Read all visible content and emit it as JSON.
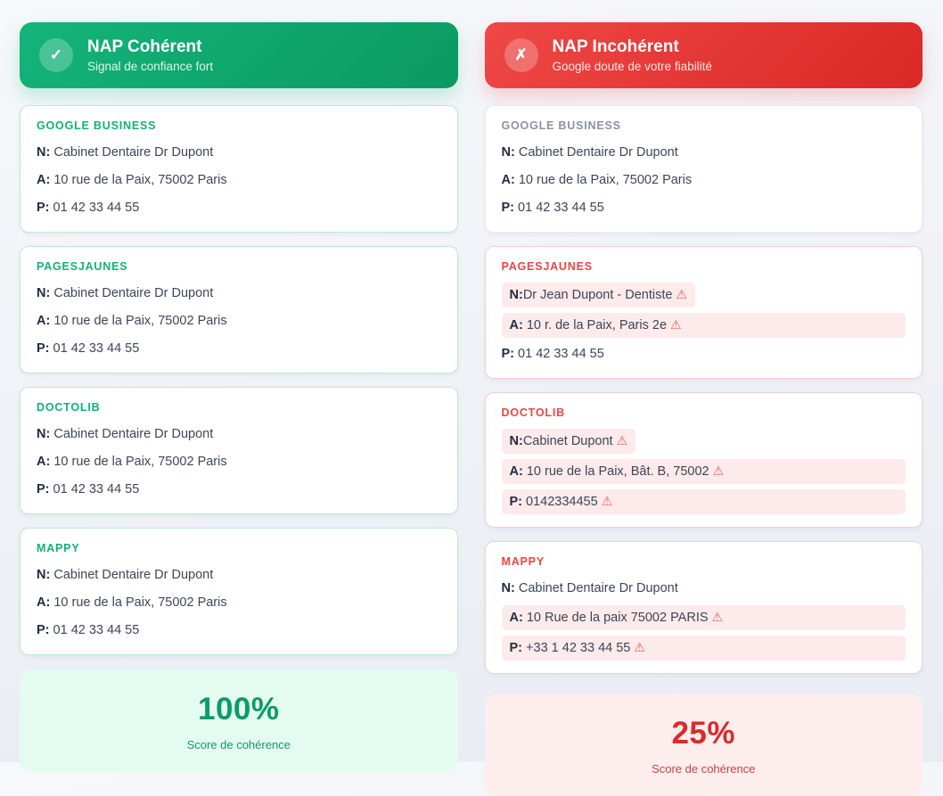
{
  "warning_icon": "⚠",
  "colors": {
    "green": "#10b981",
    "green_dark": "#059669",
    "red": "#ef4444",
    "red_dark": "#dc2626",
    "highlight_bg": "#fdeaea",
    "ok_border": "#b9ecd3",
    "bad_border": "#f8cdd0"
  },
  "columns": [
    {
      "id": "coherent",
      "theme": "green",
      "header": {
        "icon_glyph": "✓",
        "icon_name": "check-icon",
        "title": "NAP Cohérent",
        "subtitle": "Signal de confiance fort"
      },
      "cards": [
        {
          "theme": "ok",
          "source": "GOOGLE BUSINESS",
          "rows": [
            {
              "label": "N:",
              "value": "Cabinet Dentaire Dr Dupont",
              "highlight": "none",
              "warn": false
            },
            {
              "label": "A:",
              "value": "10 rue de la Paix, 75002 Paris",
              "highlight": "none",
              "warn": false
            },
            {
              "label": "P:",
              "value": "01 42 33 44 55",
              "highlight": "none",
              "warn": false
            }
          ]
        },
        {
          "theme": "ok",
          "source": "PAGESJAUNES",
          "rows": [
            {
              "label": "N:",
              "value": "Cabinet Dentaire Dr Dupont",
              "highlight": "none",
              "warn": false
            },
            {
              "label": "A:",
              "value": "10 rue de la Paix, 75002 Paris",
              "highlight": "none",
              "warn": false
            },
            {
              "label": "P:",
              "value": "01 42 33 44 55",
              "highlight": "none",
              "warn": false
            }
          ]
        },
        {
          "theme": "ok",
          "source": "DOCTOLIB",
          "rows": [
            {
              "label": "N:",
              "value": "Cabinet Dentaire Dr Dupont",
              "highlight": "none",
              "warn": false
            },
            {
              "label": "A:",
              "value": "10 rue de la Paix, 75002 Paris",
              "highlight": "none",
              "warn": false
            },
            {
              "label": "P:",
              "value": "01 42 33 44 55",
              "highlight": "none",
              "warn": false
            }
          ]
        },
        {
          "theme": "ok",
          "source": "MAPPY",
          "rows": [
            {
              "label": "N:",
              "value": "Cabinet Dentaire Dr Dupont",
              "highlight": "none",
              "warn": false
            },
            {
              "label": "A:",
              "value": "10 rue de la Paix, 75002 Paris",
              "highlight": "none",
              "warn": false
            },
            {
              "label": "P:",
              "value": "01 42 33 44 55",
              "highlight": "none",
              "warn": false
            }
          ]
        }
      ],
      "score": {
        "value": "100%",
        "label": "Score de cohérence"
      }
    },
    {
      "id": "incoherent",
      "theme": "red",
      "header": {
        "icon_glyph": "✗",
        "icon_name": "cross-icon",
        "title": "NAP Incohérent",
        "subtitle": "Google doute de votre fiabilité"
      },
      "cards": [
        {
          "theme": "neutral",
          "source": "GOOGLE BUSINESS",
          "rows": [
            {
              "label": "N:",
              "value": "Cabinet Dentaire Dr Dupont",
              "highlight": "none",
              "warn": false
            },
            {
              "label": "A:",
              "value": "10 rue de la Paix, 75002 Paris",
              "highlight": "none",
              "warn": false
            },
            {
              "label": "P:",
              "value": "01 42 33 44 55",
              "highlight": "none",
              "warn": false
            }
          ]
        },
        {
          "theme": "bad",
          "source": "PAGESJAUNES",
          "rows": [
            {
              "label": "N:",
              "value": "Dr Jean Dupont - Dentiste",
              "highlight": "fit",
              "warn": true
            },
            {
              "label": "A:",
              "value": "10 r. de la Paix, Paris 2e",
              "highlight": "full",
              "warn": true
            },
            {
              "label": "P:",
              "value": "01 42 33 44 55",
              "highlight": "none",
              "warn": false
            }
          ]
        },
        {
          "theme": "bad",
          "source": "DOCTOLIB",
          "rows": [
            {
              "label": "N:",
              "value": "Cabinet Dupont",
              "highlight": "fit",
              "warn": true
            },
            {
              "label": "A:",
              "value": "10 rue de la Paix, Bât. B, 75002",
              "highlight": "full",
              "warn": true
            },
            {
              "label": "P:",
              "value": "0142334455",
              "highlight": "full",
              "warn": true
            }
          ]
        },
        {
          "theme": "bad",
          "source": "MAPPY",
          "rows": [
            {
              "label": "N:",
              "value": "Cabinet Dentaire Dr Dupont",
              "highlight": "none",
              "warn": false
            },
            {
              "label": "A:",
              "value": "10 Rue de la paix 75002 PARIS",
              "highlight": "full",
              "warn": true
            },
            {
              "label": "P:",
              "value": "+33 1 42 33 44 55",
              "highlight": "full",
              "warn": true
            }
          ]
        }
      ],
      "score": {
        "value": "25%",
        "label": "Score de cohérence"
      }
    }
  ]
}
